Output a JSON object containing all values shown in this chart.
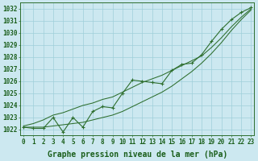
{
  "hours": [
    0,
    1,
    2,
    3,
    4,
    5,
    6,
    7,
    8,
    9,
    10,
    11,
    12,
    13,
    14,
    15,
    16,
    17,
    18,
    19,
    20,
    21,
    22,
    23
  ],
  "line_main": [
    1022.2,
    1022.1,
    1022.1,
    1023.0,
    1021.8,
    1023.0,
    1022.2,
    1023.5,
    1023.9,
    1023.8,
    1025.0,
    1026.1,
    1026.0,
    1025.9,
    1025.8,
    1026.9,
    1027.4,
    1027.5,
    1028.2,
    1029.3,
    1030.3,
    1031.1,
    1031.7,
    1032.1
  ],
  "line_upper": [
    1022.3,
    1022.5,
    1022.8,
    1023.2,
    1023.4,
    1023.7,
    1024.0,
    1024.2,
    1024.5,
    1024.7,
    1025.1,
    1025.5,
    1025.9,
    1026.2,
    1026.5,
    1026.9,
    1027.3,
    1027.7,
    1028.1,
    1028.8,
    1029.6,
    1030.5,
    1031.3,
    1032.0
  ],
  "line_lower": [
    1022.2,
    1022.2,
    1022.2,
    1022.3,
    1022.4,
    1022.5,
    1022.6,
    1022.8,
    1023.0,
    1023.2,
    1023.5,
    1023.9,
    1024.3,
    1024.7,
    1025.1,
    1025.6,
    1026.2,
    1026.8,
    1027.5,
    1028.3,
    1029.2,
    1030.2,
    1031.1,
    1031.9
  ],
  "bg_color": "#cce8f0",
  "line_color": "#2d6e2d",
  "grid_color": "#9fcfda",
  "xlabel": "Graphe pression niveau de la mer (hPa)",
  "ylim": [
    1021.5,
    1032.5
  ],
  "yticks": [
    1022,
    1023,
    1024,
    1025,
    1026,
    1027,
    1028,
    1029,
    1030,
    1031,
    1032
  ],
  "title_color": "#1a5e1a",
  "tick_fontsize": 5.5,
  "xlabel_fontsize": 7.0
}
